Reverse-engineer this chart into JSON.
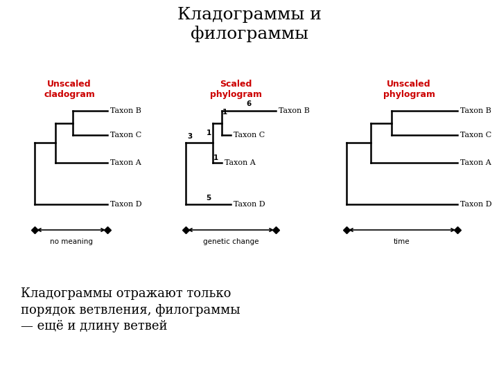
{
  "title": "Кладограммы и\nфилограммы",
  "subtitle": "Кладограммы отражают только\nпорядок ветвления, филограммы\n— ещё и длину ветвей",
  "title_fontsize": 18,
  "subtitle_fontsize": 13,
  "label_color": "#cc0000",
  "text_color": "#000000",
  "bg_color": "#ffffff",
  "panel1_label": "Unscaled\ncladogram",
  "panel2_label": "Scaled\nphylogram",
  "panel3_label": "Unscaled\nphylogram",
  "panel1_axis_label": "no meaning",
  "panel2_axis_label": "genetic change",
  "panel3_axis_label": "time",
  "taxa": [
    "Taxon B",
    "Taxon C",
    "Taxon A",
    "Taxon D"
  ],
  "lw": 1.8
}
